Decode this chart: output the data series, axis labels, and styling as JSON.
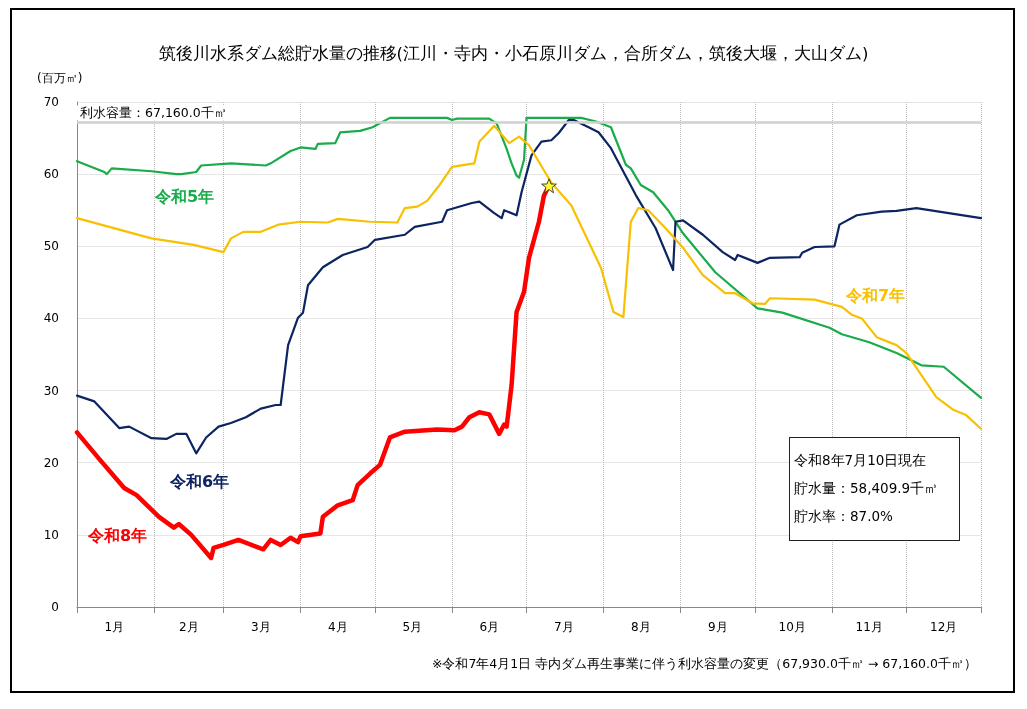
{
  "chart_data": {
    "type": "line",
    "title": "筑後川水系ダム総貯水量の推移(江川・寺内・小石原川ダム，合所ダム，筑後大堰，大山ダム)",
    "ylabel": "(百万㎥)",
    "xlim": [
      "--01-01",
      "--12-31"
    ],
    "xticks": [
      {
        "value": "--01-01",
        "label": null
      },
      {
        "value": "--01-16",
        "label": "1月"
      },
      {
        "value": "--02-01",
        "label": null
      },
      {
        "value": "--02-15",
        "label": "2月"
      },
      {
        "value": "--03-01",
        "label": null
      },
      {
        "value": "--03-16",
        "label": "3月"
      },
      {
        "value": "--04-01",
        "label": null
      },
      {
        "value": "--04-16",
        "label": "4月"
      },
      {
        "value": "--05-01",
        "label": null
      },
      {
        "value": "--05-16",
        "label": "5月"
      },
      {
        "value": "--06-01",
        "label": null
      },
      {
        "value": "--06-16",
        "label": "6月"
      },
      {
        "value": "--07-01",
        "label": null
      },
      {
        "value": "--07-16",
        "label": "7月"
      },
      {
        "value": "--08-01",
        "label": null
      },
      {
        "value": "--08-16",
        "label": "8月"
      },
      {
        "value": "--09-01",
        "label": null
      },
      {
        "value": "--09-16",
        "label": "9月"
      },
      {
        "value": "--10-01",
        "label": null
      },
      {
        "value": "--10-16",
        "label": "10月"
      },
      {
        "value": "--11-01",
        "label": null
      },
      {
        "value": "--11-16",
        "label": "11月"
      },
      {
        "value": "--12-01",
        "label": null
      },
      {
        "value": "--12-16",
        "label": "12月"
      },
      {
        "value": "--12-31",
        "label": null
      }
    ],
    "ylim": [
      0,
      70
    ],
    "yticks": [
      0,
      10,
      20,
      30,
      40,
      50,
      60,
      70
    ],
    "grid": true,
    "legend": false,
    "marker": "none",
    "line_style": "solid",
    "ref_lines": [
      {
        "axis": "y",
        "value": 67.16,
        "label": "利水容量：67,160.0千㎥",
        "color": "#d0d0d0"
      }
    ],
    "annotations": [
      "令和8年7月10日現在",
      "貯水量：58,409.9千㎥",
      "貯水率：87.0%",
      "※令和7年4月1日 寺内ダム再生事業に伴う利水容量の変更（67,930.0千㎥ → 67,160.0千㎥）"
    ],
    "series": [
      {
        "name": "令和5年",
        "color": "#1aab4b",
        "x": [
          "--01-01",
          "--01-12",
          "--01-13",
          "--01-15",
          "--01-31",
          "--02-10",
          "--02-12",
          "--02-18",
          "--02-20",
          "--03-04",
          "--03-18",
          "--03-20",
          "--03-28",
          "--04-01",
          "--04-07",
          "--04-08",
          "--04-15",
          "--04-17",
          "--04-25",
          "--04-30",
          "--05-07",
          "--05-30",
          "--06-01",
          "--06-03",
          "--06-16",
          "--06-19",
          "--06-23",
          "--06-25",
          "--06-27",
          "--06-28",
          "--06-30",
          "--07-01",
          "--07-23",
          "--07-29",
          "--08-04",
          "--08-10",
          "--08-12",
          "--08-16",
          "--08-21",
          "--08-27",
          "--09-02",
          "--09-15",
          "--10-02",
          "--10-12",
          "--10-31",
          "--11-05",
          "--11-16",
          "--11-27",
          "--12-07",
          "--12-16",
          "--12-31"
        ],
        "values": [
          61.8,
          60.3,
          60.0,
          60.8,
          60.4,
          60.0,
          60.0,
          60.3,
          61.2,
          61.5,
          61.2,
          61.5,
          63.2,
          63.7,
          63.5,
          64.2,
          64.3,
          65.8,
          66.0,
          66.5,
          67.8,
          67.8,
          67.5,
          67.7,
          67.7,
          67.0,
          63.5,
          61.5,
          59.8,
          59.5,
          62.0,
          67.8,
          67.8,
          67.3,
          66.5,
          61.3,
          60.8,
          58.5,
          57.5,
          55.0,
          51.8,
          46.4,
          41.4,
          40.8,
          38.7,
          37.8,
          36.7,
          35.2,
          33.5,
          33.3,
          29.0
        ]
      },
      {
        "name": "令和6年",
        "color": "#0c2461",
        "x": [
          "--01-01",
          "--01-08",
          "--01-18",
          "--01-22",
          "--01-31",
          "--02-06",
          "--02-10",
          "--02-14",
          "--02-18",
          "--02-22",
          "--02-27",
          "--03-04",
          "--03-10",
          "--03-16",
          "--03-22",
          "--03-24",
          "--03-27",
          "--03-31",
          "--04-02",
          "--04-04",
          "--04-10",
          "--04-18",
          "--04-28",
          "--05-01",
          "--05-13",
          "--05-17",
          "--05-28",
          "--05-30",
          "--06-09",
          "--06-12",
          "--06-18",
          "--06-21",
          "--06-22",
          "--06-27",
          "--06-29",
          "--07-03",
          "--07-07",
          "--07-11",
          "--07-14",
          "--07-18",
          "--07-20",
          "--07-26",
          "--07-30",
          "--08-04",
          "--08-14",
          "--08-22",
          "--08-29",
          "--08-30",
          "--09-02",
          "--09-10",
          "--09-18",
          "--09-23",
          "--09-24",
          "--10-02",
          "--10-07",
          "--10-19",
          "--10-20",
          "--10-25",
          "--11-02",
          "--11-04",
          "--11-11",
          "--11-21",
          "--11-27",
          "--12-05",
          "--12-31"
        ],
        "values": [
          29.3,
          28.5,
          24.8,
          25.0,
          23.4,
          23.3,
          24.0,
          24.0,
          21.3,
          23.5,
          25.0,
          25.5,
          26.3,
          27.5,
          28.0,
          28.0,
          36.3,
          40.1,
          40.8,
          44.6,
          47.1,
          48.8,
          49.9,
          50.9,
          51.6,
          52.7,
          53.4,
          55.0,
          56.0,
          56.2,
          54.6,
          53.9,
          55.0,
          54.3,
          57.5,
          62.6,
          64.5,
          64.7,
          65.7,
          67.5,
          67.5,
          66.5,
          65.8,
          63.6,
          57.1,
          52.5,
          46.7,
          53.4,
          53.6,
          51.6,
          49.2,
          48.1,
          48.8,
          47.7,
          48.4,
          48.5,
          49.1,
          49.9,
          50.0,
          53.0,
          54.3,
          54.8,
          54.9,
          55.3,
          53.9
        ]
      },
      {
        "name": "令和7年",
        "color": "#f7c000",
        "x": [
          "--01-01",
          "--01-31",
          "--02-17",
          "--03-01",
          "--03-04",
          "--03-09",
          "--03-16",
          "--03-23",
          "--04-01",
          "--04-12",
          "--04-16",
          "--04-29",
          "--05-10",
          "--05-13",
          "--05-18",
          "--05-22",
          "--05-27",
          "--06-01",
          "--06-10",
          "--06-12",
          "--06-18",
          "--06-24",
          "--06-28",
          "--07-02",
          "--07-11",
          "--07-19",
          "--07-31",
          "--08-05",
          "--08-09",
          "--08-12",
          "--08-15",
          "--08-19",
          "--08-26",
          "--09-02",
          "--09-10",
          "--09-19",
          "--09-23",
          "--09-30",
          "--10-05",
          "--10-07",
          "--10-25",
          "--11-05",
          "--11-09",
          "--11-13",
          "--11-19",
          "--11-27",
          "--12-01",
          "--12-13",
          "--12-20",
          "--12-25",
          "--12-31"
        ],
        "values": [
          53.9,
          51.1,
          50.2,
          49.2,
          51.1,
          52.0,
          52.0,
          53.0,
          53.4,
          53.3,
          53.8,
          53.4,
          53.3,
          55.3,
          55.5,
          56.3,
          58.5,
          61.0,
          61.5,
          64.5,
          66.7,
          64.3,
          65.2,
          64.0,
          58.8,
          55.7,
          47.0,
          40.9,
          40.2,
          53.4,
          55.3,
          55.0,
          52.5,
          49.8,
          46.0,
          43.5,
          43.5,
          42.1,
          42.0,
          42.8,
          42.6,
          41.6,
          40.5,
          40.0,
          37.4,
          36.3,
          35.2,
          29.1,
          27.3,
          26.6,
          24.7
        ]
      },
      {
        "name": "令和8年",
        "color": "#ff0000",
        "x": [
          "--01-01",
          "--01-10",
          "--01-20",
          "--01-25",
          "--02-03",
          "--02-09",
          "--02-11",
          "--02-16",
          "--02-24",
          "--02-25",
          "--03-01",
          "--03-07",
          "--03-17",
          "--03-20",
          "--03-24",
          "--03-28",
          "--03-31",
          "--04-01",
          "--04-09",
          "--04-10",
          "--04-16",
          "--04-22",
          "--04-24",
          "--04-29",
          "--05-03",
          "--05-07",
          "--05-13",
          "--05-26",
          "--06-02",
          "--06-05",
          "--06-08",
          "--06-12",
          "--06-16",
          "--06-20",
          "--06-22",
          "--06-23",
          "--06-25",
          "--06-27",
          "--06-30",
          "--07-02",
          "--07-06",
          "--07-08",
          "--07-10"
        ],
        "values": [
          24.2,
          20.5,
          16.5,
          15.5,
          12.5,
          11.0,
          11.5,
          10.0,
          6.8,
          8.2,
          8.6,
          9.3,
          8.0,
          9.3,
          8.6,
          9.6,
          9.0,
          9.8,
          10.2,
          12.5,
          14.1,
          14.8,
          16.9,
          18.5,
          19.7,
          23.5,
          24.3,
          24.6,
          24.5,
          25.0,
          26.3,
          27.0,
          26.7,
          24.0,
          25.3,
          25.0,
          30.8,
          40.9,
          43.7,
          48.4,
          53.4,
          57.0,
          58.4
        ]
      }
    ]
  }
}
